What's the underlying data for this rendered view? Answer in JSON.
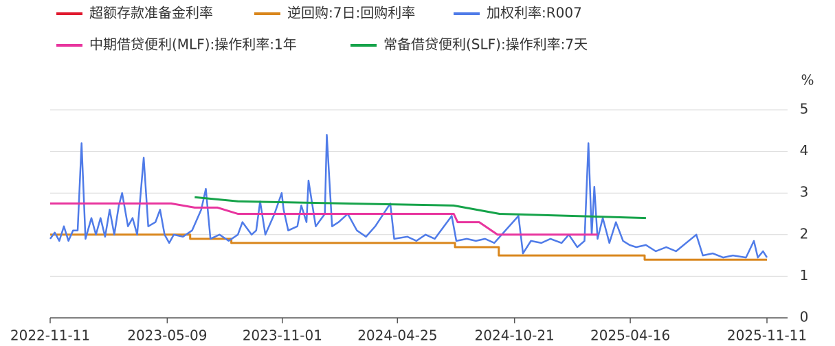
{
  "chart_data": {
    "type": "line",
    "y_unit": "%",
    "xlim": [
      "2022-11-11",
      "2025-11-11"
    ],
    "xticks": [
      "2022-11-11",
      "2023-05-09",
      "2023-11-01",
      "2024-04-25",
      "2024-10-21",
      "2025-04-16",
      "2025-11-11"
    ],
    "ylim": [
      0,
      5
    ],
    "yticks": [
      0,
      1,
      2,
      3,
      4,
      5
    ],
    "grid": true,
    "series": [
      {
        "name": "超额存款准备金利率",
        "color": "#e0192e",
        "x": [],
        "values": []
      },
      {
        "name": "逆回购:7日:回购利率",
        "color": "#d9861c",
        "x": [
          "2022-11-11",
          "2023-06-13",
          "2023-06-13",
          "2023-08-15",
          "2023-08-15",
          "2024-07-22",
          "2024-07-22",
          "2024-09-27",
          "2024-09-27",
          "2025-05-08",
          "2025-05-08",
          "2025-11-11"
        ],
        "values": [
          2.0,
          2.0,
          1.9,
          1.9,
          1.8,
          1.8,
          1.7,
          1.7,
          1.5,
          1.5,
          1.4,
          1.4
        ]
      },
      {
        "name": "加权利率:R007",
        "color": "#4f7be8",
        "x": [
          "2022-11-11",
          "2022-11-18",
          "2022-11-25",
          "2022-12-02",
          "2022-12-09",
          "2022-12-16",
          "2022-12-23",
          "2022-12-29",
          "2023-01-04",
          "2023-01-13",
          "2023-01-20",
          "2023-01-27",
          "2023-02-03",
          "2023-02-10",
          "2023-02-17",
          "2023-02-24",
          "2023-03-01",
          "2023-03-10",
          "2023-03-17",
          "2023-03-24",
          "2023-04-03",
          "2023-04-10",
          "2023-04-21",
          "2023-04-28",
          "2023-05-05",
          "2023-05-12",
          "2023-05-19",
          "2023-06-02",
          "2023-06-16",
          "2023-06-30",
          "2023-07-07",
          "2023-07-14",
          "2023-07-28",
          "2023-08-11",
          "2023-08-25",
          "2023-09-01",
          "2023-09-15",
          "2023-09-22",
          "2023-09-28",
          "2023-10-06",
          "2023-10-20",
          "2023-10-31",
          "2023-11-03",
          "2023-11-10",
          "2023-11-24",
          "2023-11-30",
          "2023-12-08",
          "2023-12-11",
          "2023-12-22",
          "2024-01-05",
          "2024-01-08",
          "2024-01-16",
          "2024-01-26",
          "2024-02-09",
          "2024-02-23",
          "2024-03-08",
          "2024-03-22",
          "2024-04-14",
          "2024-04-20",
          "2024-05-10",
          "2024-05-24",
          "2024-06-07",
          "2024-06-21",
          "2024-07-17",
          "2024-07-24",
          "2024-08-09",
          "2024-08-23",
          "2024-09-06",
          "2024-09-20",
          "2024-10-27",
          "2024-11-03",
          "2024-11-15",
          "2024-12-01",
          "2024-12-15",
          "2025-01-01",
          "2025-01-12",
          "2025-01-25",
          "2025-02-05",
          "2025-02-11",
          "2025-02-16",
          "2025-02-20",
          "2025-02-25",
          "2025-03-05",
          "2025-03-15",
          "2025-03-25",
          "2025-04-05",
          "2025-04-15",
          "2025-04-25",
          "2025-05-10",
          "2025-05-25",
          "2025-06-10",
          "2025-06-25",
          "2025-07-26",
          "2025-08-05",
          "2025-08-20",
          "2025-09-05",
          "2025-09-20",
          "2025-10-10",
          "2025-10-22",
          "2025-10-28",
          "2025-11-05",
          "2025-11-11"
        ],
        "values": [
          1.9,
          2.05,
          1.85,
          2.2,
          1.85,
          2.1,
          2.1,
          4.2,
          1.9,
          2.4,
          2.0,
          2.4,
          1.95,
          2.6,
          2.0,
          2.7,
          3.0,
          2.2,
          2.4,
          2.0,
          3.85,
          2.2,
          2.3,
          2.6,
          2.0,
          1.8,
          2.0,
          1.95,
          2.1,
          2.6,
          3.1,
          1.9,
          2.0,
          1.85,
          2.0,
          2.3,
          2.0,
          2.1,
          2.8,
          2.0,
          2.5,
          3.0,
          2.6,
          2.1,
          2.2,
          2.7,
          2.3,
          3.3,
          2.2,
          2.5,
          4.4,
          2.2,
          2.3,
          2.5,
          2.1,
          1.95,
          2.2,
          2.75,
          1.9,
          1.95,
          1.85,
          2.0,
          1.9,
          2.45,
          1.85,
          1.9,
          1.85,
          1.9,
          1.8,
          2.45,
          1.55,
          1.85,
          1.8,
          1.9,
          1.8,
          2.0,
          1.7,
          1.85,
          4.2,
          2.0,
          3.15,
          1.9,
          2.4,
          1.8,
          2.3,
          1.85,
          1.75,
          1.7,
          1.75,
          1.6,
          1.7,
          1.6,
          2.0,
          1.5,
          1.55,
          1.45,
          1.5,
          1.45,
          1.85,
          1.45,
          1.6,
          1.45
        ]
      },
      {
        "name": "中期借贷便利(MLF):操作利率:1年",
        "color": "#e8359e",
        "x": [
          "2022-11-11",
          "2023-05-15",
          "2023-06-20",
          "2023-07-25",
          "2023-08-25",
          "2024-07-20",
          "2024-07-26",
          "2024-08-28",
          "2024-09-25",
          "2025-02-25"
        ],
        "values": [
          2.75,
          2.75,
          2.65,
          2.65,
          2.5,
          2.5,
          2.3,
          2.3,
          2.0,
          2.0
        ]
      },
      {
        "name": "常备借贷便利(SLF):操作利率:7天",
        "color": "#16a34a",
        "x": [
          "2023-06-20",
          "2023-08-25",
          "2024-07-20",
          "2024-09-28",
          "2025-05-10"
        ],
        "values": [
          2.9,
          2.8,
          2.7,
          2.5,
          2.4
        ]
      }
    ]
  }
}
